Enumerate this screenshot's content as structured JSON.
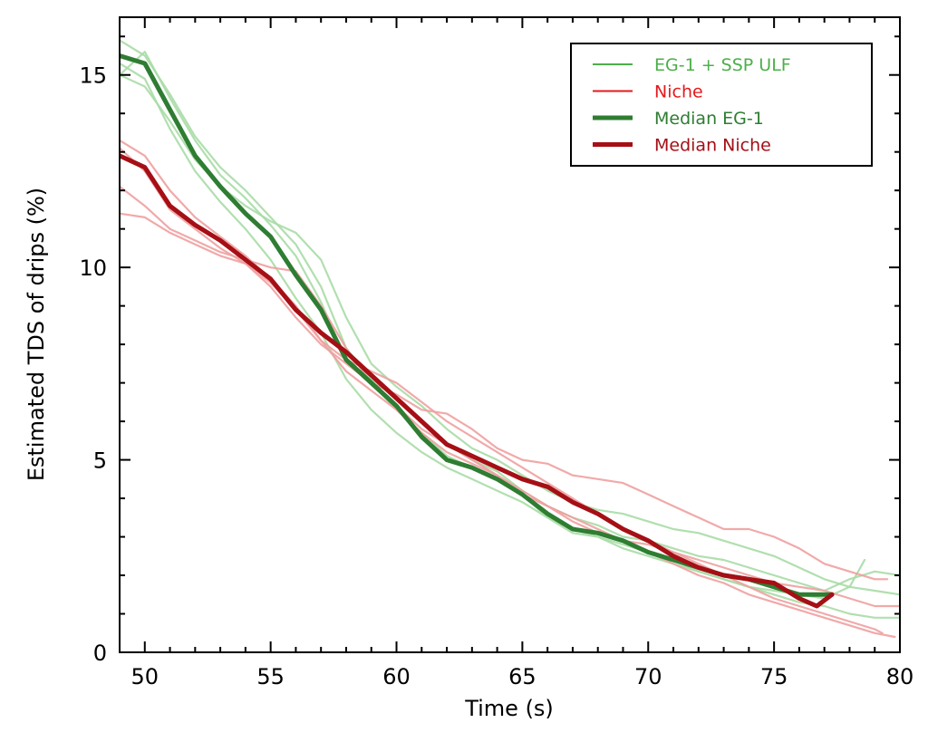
{
  "chart_data": {
    "type": "line",
    "title": "",
    "xlabel": "Time (s)",
    "ylabel": "Estimated TDS of drips (%)",
    "xlim": [
      49,
      80
    ],
    "ylim": [
      0,
      16.5
    ],
    "xticks": [
      50,
      55,
      60,
      65,
      70,
      75,
      80
    ],
    "yticks": [
      0,
      5,
      10,
      15
    ],
    "x_minor_step": 1,
    "y_minor_step": 1,
    "grid": false,
    "legend_position": "top-right",
    "legend": [
      {
        "label": "EG-1 + SSP ULF",
        "color": "#4daf4a",
        "style": "thin"
      },
      {
        "label": "Niche",
        "color": "#e41a1c",
        "style": "thin"
      },
      {
        "label": "Median EG-1",
        "color": "#2e7d32",
        "style": "thick"
      },
      {
        "label": "Median Niche",
        "color": "#a50f15",
        "style": "thick"
      }
    ],
    "series": [
      {
        "name": "EG-1 + SSP ULF run 1",
        "group": "EG-1 + SSP ULF",
        "color": "#a8dba6",
        "x": [
          49,
          50,
          51,
          52,
          53,
          54,
          55,
          56,
          57,
          58,
          59,
          60,
          61,
          62,
          63,
          64,
          65,
          66,
          67,
          68,
          69,
          70,
          71,
          72,
          73,
          74,
          75,
          76,
          77,
          78,
          79,
          80
        ],
        "y": [
          15.9,
          15.5,
          14.5,
          13.4,
          12.6,
          12.0,
          11.3,
          10.6,
          9.5,
          7.9,
          7.1,
          6.6,
          6.0,
          5.4,
          5.0,
          4.7,
          4.2,
          3.8,
          3.5,
          3.3,
          3.0,
          2.9,
          2.7,
          2.5,
          2.4,
          2.2,
          2.0,
          1.8,
          1.6,
          1.9,
          2.1,
          2.0
        ]
      },
      {
        "name": "EG-1 + SSP ULF run 2",
        "group": "EG-1 + SSP ULF",
        "color": "#a8dba6",
        "x": [
          49,
          50,
          51,
          52,
          53,
          54,
          55,
          56,
          57,
          58,
          59,
          60,
          61,
          62,
          63,
          64,
          65,
          66,
          67,
          68,
          69,
          70,
          71,
          72,
          73,
          74,
          75,
          76,
          77,
          78,
          78.6
        ],
        "y": [
          15.0,
          15.6,
          14.4,
          13.3,
          12.4,
          11.8,
          11.1,
          10.3,
          9.1,
          7.6,
          7.0,
          6.3,
          5.7,
          5.1,
          4.8,
          4.5,
          4.1,
          3.5,
          3.1,
          3.0,
          2.8,
          2.6,
          2.4,
          2.1,
          1.9,
          1.7,
          1.6,
          1.5,
          1.4,
          1.7,
          2.4
        ]
      },
      {
        "name": "EG-1 + SSP ULF run 3",
        "group": "EG-1 + SSP ULF",
        "color": "#a8dba6",
        "x": [
          49,
          50,
          51,
          52,
          53,
          54,
          55,
          56,
          57,
          58,
          59,
          60,
          61,
          62,
          63,
          64,
          65,
          66,
          67,
          68,
          69,
          70,
          71,
          72,
          73,
          74,
          75,
          76,
          77,
          78,
          79,
          80
        ],
        "y": [
          15.0,
          14.7,
          13.8,
          12.8,
          12.1,
          11.6,
          11.2,
          10.9,
          10.2,
          8.7,
          7.5,
          6.9,
          6.4,
          5.8,
          5.3,
          5.0,
          4.6,
          4.2,
          3.9,
          3.7,
          3.6,
          3.4,
          3.2,
          3.1,
          2.9,
          2.7,
          2.5,
          2.2,
          1.9,
          1.7,
          1.6,
          1.5
        ]
      },
      {
        "name": "EG-1 + SSP ULF run 4",
        "group": "EG-1 + SSP ULF",
        "color": "#a8dba6",
        "x": [
          49,
          50,
          51,
          52,
          53,
          54,
          55,
          56,
          57,
          58,
          59,
          60,
          61,
          62,
          63,
          64,
          65,
          66,
          67,
          68,
          69,
          70,
          71,
          72,
          73,
          74,
          75,
          76,
          77,
          78,
          79,
          80
        ],
        "y": [
          15.3,
          14.9,
          13.6,
          12.5,
          11.7,
          11.0,
          10.2,
          9.2,
          8.3,
          7.1,
          6.3,
          5.7,
          5.2,
          4.8,
          4.5,
          4.2,
          3.9,
          3.5,
          3.2,
          3.0,
          2.7,
          2.5,
          2.3,
          2.1,
          1.9,
          1.7,
          1.5,
          1.3,
          1.2,
          1.0,
          0.9,
          0.9
        ]
      },
      {
        "name": "Niche run 1",
        "group": "Niche",
        "color": "#f0a0a0",
        "x": [
          49,
          50,
          51,
          52,
          53,
          54,
          55,
          56,
          57,
          58,
          59,
          60,
          61,
          62,
          63,
          64,
          65,
          66,
          67,
          68,
          69,
          70,
          71,
          72,
          73,
          74,
          75,
          76,
          77,
          78,
          79,
          80
        ],
        "y": [
          13.3,
          12.9,
          12.0,
          11.3,
          10.8,
          10.3,
          9.7,
          9.0,
          8.1,
          7.3,
          6.8,
          6.3,
          5.7,
          5.2,
          4.9,
          4.6,
          4.1,
          3.8,
          3.4,
          3.1,
          2.9,
          2.8,
          2.6,
          2.4,
          2.2,
          2.0,
          1.8,
          1.7,
          1.6,
          1.4,
          1.2,
          1.2
        ]
      },
      {
        "name": "Niche run 2",
        "group": "Niche",
        "color": "#f0a0a0",
        "x": [
          49,
          50,
          51,
          52,
          53,
          54,
          55,
          56,
          57,
          58,
          59,
          60,
          61,
          62,
          63,
          64,
          65,
          66,
          67,
          68,
          69,
          70,
          71,
          72,
          73,
          74,
          75,
          76,
          77,
          78,
          79,
          79.5
        ],
        "y": [
          12.1,
          11.6,
          11.0,
          10.7,
          10.4,
          10.2,
          10.0,
          9.9,
          9.0,
          7.9,
          7.0,
          6.7,
          6.3,
          6.2,
          5.8,
          5.3,
          5.0,
          4.9,
          4.6,
          4.5,
          4.4,
          4.1,
          3.8,
          3.5,
          3.2,
          3.2,
          3.0,
          2.7,
          2.3,
          2.1,
          1.9,
          1.9
        ]
      },
      {
        "name": "Niche run 3",
        "group": "Niche",
        "color": "#f0a0a0",
        "x": [
          49,
          50,
          51,
          52,
          53,
          54,
          55,
          56,
          57,
          58,
          59,
          60,
          61,
          62,
          63,
          64,
          65,
          66,
          67,
          68,
          69,
          70,
          71,
          72,
          73,
          74,
          75,
          76,
          77,
          78,
          79,
          79.3
        ],
        "y": [
          11.4,
          11.3,
          10.9,
          10.6,
          10.3,
          10.1,
          9.6,
          8.9,
          8.1,
          7.6,
          7.3,
          7.0,
          6.5,
          6.0,
          5.6,
          5.2,
          4.8,
          4.4,
          4.0,
          3.6,
          3.2,
          2.9,
          2.6,
          2.3,
          2.0,
          1.7,
          1.4,
          1.2,
          1.0,
          0.8,
          0.6,
          0.5
        ]
      },
      {
        "name": "Niche run 4",
        "group": "Niche",
        "color": "#f0a0a0",
        "x": [
          49,
          50,
          51,
          52,
          53,
          54,
          55,
          56,
          57,
          58,
          59,
          60,
          61,
          62,
          63,
          64,
          65,
          66,
          67,
          68,
          69,
          70,
          71,
          72,
          73,
          74,
          75,
          76,
          77,
          78,
          79,
          79.8
        ],
        "y": [
          13.1,
          12.5,
          11.5,
          11.0,
          10.5,
          10.1,
          9.5,
          8.7,
          8.0,
          7.5,
          7.0,
          6.4,
          5.8,
          5.4,
          5.0,
          4.6,
          4.2,
          3.8,
          3.5,
          3.2,
          2.9,
          2.6,
          2.3,
          2.0,
          1.8,
          1.5,
          1.3,
          1.1,
          0.9,
          0.7,
          0.5,
          0.4
        ]
      },
      {
        "name": "Median EG-1",
        "group": "Median EG-1",
        "color": "#2e7d32",
        "x": [
          49,
          50,
          51,
          52,
          53,
          54,
          55,
          56,
          57,
          58,
          59,
          60,
          61,
          62,
          63,
          64,
          65,
          66,
          67,
          68,
          69,
          70,
          71,
          72,
          73,
          74,
          75,
          76,
          77,
          77.3
        ],
        "y": [
          15.5,
          15.3,
          14.1,
          12.9,
          12.1,
          11.4,
          10.8,
          9.8,
          8.9,
          7.6,
          7.0,
          6.4,
          5.6,
          5.0,
          4.8,
          4.5,
          4.1,
          3.6,
          3.2,
          3.1,
          2.9,
          2.6,
          2.4,
          2.2,
          2.0,
          1.9,
          1.7,
          1.5,
          1.5,
          1.5
        ]
      },
      {
        "name": "Median Niche",
        "group": "Median Niche",
        "color": "#a50f15",
        "x": [
          49,
          50,
          51,
          52,
          53,
          54,
          55,
          56,
          57,
          58,
          59,
          60,
          61,
          62,
          63,
          64,
          65,
          66,
          67,
          68,
          69,
          70,
          71,
          72,
          73,
          74,
          75,
          76,
          76.7,
          77.3
        ],
        "y": [
          12.9,
          12.6,
          11.6,
          11.1,
          10.7,
          10.2,
          9.7,
          8.9,
          8.3,
          7.8,
          7.2,
          6.6,
          6.0,
          5.4,
          5.1,
          4.8,
          4.5,
          4.3,
          3.9,
          3.6,
          3.2,
          2.9,
          2.5,
          2.2,
          2.0,
          1.9,
          1.8,
          1.4,
          1.2,
          1.5
        ]
      }
    ]
  }
}
